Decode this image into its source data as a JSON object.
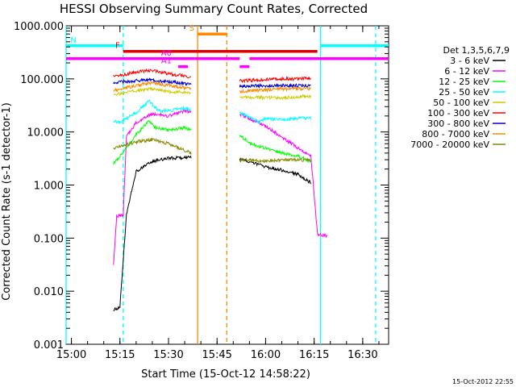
{
  "chart_data": {
    "type": "line",
    "title": "HESSI Observing Summary Count Rates, Corrected",
    "xlabel": "Start Time (15-Oct-12 14:58:22)",
    "ylabel": "Corrected Count Rate (s-1 detector-1)",
    "yscale": "log",
    "xlim": [
      "14:58:22",
      "16:38:00"
    ],
    "ylim": [
      0.001,
      1000
    ],
    "x_ticks": [
      "15:00",
      "15:15",
      "15:30",
      "15:45",
      "16:00",
      "16:15",
      "16:30"
    ],
    "y_ticks": [
      "0.001",
      "0.010",
      "0.100",
      "1.000",
      "10.000",
      "100.000",
      "1000.000"
    ],
    "legend_title": "Det 1,3,5,6,7,9",
    "legend_position": "right",
    "timestamp": "15-Oct-2012 22:55",
    "series": [
      {
        "name": "3 - 6 keV",
        "color": "#000000",
        "points": [
          [
            "15:13",
            0.0045
          ],
          [
            "15:15",
            0.005
          ],
          [
            "15:17",
            0.28
          ],
          [
            "15:20",
            1.8
          ],
          [
            "15:25",
            2.8
          ],
          [
            "15:30",
            3.2
          ],
          [
            "15:35",
            3.3
          ],
          [
            "15:37",
            3.3
          ],
          [
            "15:52",
            3.0
          ],
          [
            "15:55",
            2.8
          ],
          [
            "16:00",
            2.2
          ],
          [
            "16:05",
            1.9
          ],
          [
            "16:10",
            1.6
          ],
          [
            "16:14",
            1.1
          ]
        ]
      },
      {
        "name": "6 - 12 keV",
        "color": "#ff00ff",
        "points": [
          [
            "15:13",
            0.03
          ],
          [
            "15:14",
            0.26
          ],
          [
            "15:16",
            0.27
          ],
          [
            "15:17",
            8
          ],
          [
            "15:20",
            15
          ],
          [
            "15:25",
            22
          ],
          [
            "15:30",
            20
          ],
          [
            "15:35",
            25
          ],
          [
            "15:37",
            24
          ],
          [
            "15:52",
            22
          ],
          [
            "15:55",
            18
          ],
          [
            "16:00",
            13
          ],
          [
            "16:05",
            8
          ],
          [
            "16:10",
            5
          ],
          [
            "16:14",
            3.5
          ],
          [
            "16:16",
            0.12
          ],
          [
            "16:19",
            0.11
          ]
        ]
      },
      {
        "name": "12 - 25 keV",
        "color": "#00ff00",
        "points": [
          [
            "15:13",
            2.5
          ],
          [
            "15:15",
            3.5
          ],
          [
            "15:17",
            5
          ],
          [
            "15:20",
            9
          ],
          [
            "15:24",
            16
          ],
          [
            "15:26",
            12
          ],
          [
            "15:30",
            11
          ],
          [
            "15:35",
            12
          ],
          [
            "15:37",
            11
          ],
          [
            "15:52",
            9
          ],
          [
            "15:55",
            6
          ],
          [
            "16:00",
            5
          ],
          [
            "16:05",
            4
          ],
          [
            "16:10",
            3.5
          ],
          [
            "16:14",
            2.8
          ]
        ]
      },
      {
        "name": "25 - 50 keV",
        "color": "#00ffff",
        "points": [
          [
            "15:13",
            16
          ],
          [
            "15:15",
            15
          ],
          [
            "15:17",
            18
          ],
          [
            "15:20",
            23
          ],
          [
            "15:24",
            38
          ],
          [
            "15:27",
            25
          ],
          [
            "15:30",
            25
          ],
          [
            "15:35",
            28
          ],
          [
            "15:37",
            26
          ],
          [
            "15:52",
            23
          ],
          [
            "15:55",
            19
          ],
          [
            "15:58",
            15
          ],
          [
            "16:00",
            18
          ],
          [
            "16:05",
            17
          ],
          [
            "16:10",
            18
          ],
          [
            "16:14",
            18
          ]
        ]
      },
      {
        "name": "50 - 100 keV",
        "color": "#cccc00",
        "points": [
          [
            "15:13",
            50
          ],
          [
            "15:20",
            60
          ],
          [
            "15:25",
            65
          ],
          [
            "15:30",
            58
          ],
          [
            "15:35",
            55
          ],
          [
            "15:37",
            52
          ],
          [
            "15:52",
            45
          ],
          [
            "16:00",
            45
          ],
          [
            "16:05",
            44
          ],
          [
            "16:10",
            46
          ],
          [
            "16:14",
            47
          ]
        ]
      },
      {
        "name": "100 - 300 keV",
        "color": "#ff0000",
        "points": [
          [
            "15:13",
            110
          ],
          [
            "15:20",
            135
          ],
          [
            "15:25",
            145
          ],
          [
            "15:30",
            125
          ],
          [
            "15:35",
            115
          ],
          [
            "15:37",
            105
          ],
          [
            "15:52",
            92
          ],
          [
            "16:00",
            97
          ],
          [
            "16:05",
            100
          ],
          [
            "16:10",
            100
          ],
          [
            "16:14",
            102
          ]
        ]
      },
      {
        "name": "300 - 800 keV",
        "color": "#0000cc",
        "points": [
          [
            "15:13",
            85
          ],
          [
            "15:20",
            92
          ],
          [
            "15:25",
            95
          ],
          [
            "15:30",
            88
          ],
          [
            "15:35",
            82
          ],
          [
            "15:37",
            80
          ],
          [
            "15:52",
            73
          ],
          [
            "16:00",
            75
          ],
          [
            "16:05",
            75
          ],
          [
            "16:10",
            75
          ],
          [
            "16:14",
            75
          ]
        ]
      },
      {
        "name": "800 - 7000 keV",
        "color": "#ff8800",
        "points": [
          [
            "15:13",
            60
          ],
          [
            "15:20",
            75
          ],
          [
            "15:25",
            85
          ],
          [
            "15:30",
            75
          ],
          [
            "15:35",
            68
          ],
          [
            "15:37",
            65
          ],
          [
            "15:52",
            58
          ],
          [
            "16:00",
            62
          ],
          [
            "16:05",
            65
          ],
          [
            "16:10",
            65
          ],
          [
            "16:14",
            65
          ]
        ]
      },
      {
        "name": "7000 - 20000 keV",
        "color": "#888800",
        "points": [
          [
            "15:13",
            5
          ],
          [
            "15:20",
            6.5
          ],
          [
            "15:25",
            7.2
          ],
          [
            "15:30",
            6
          ],
          [
            "15:35",
            4.5
          ],
          [
            "15:37",
            4
          ],
          [
            "15:52",
            3
          ],
          [
            "16:00",
            2.8
          ],
          [
            "16:05",
            3
          ],
          [
            "16:10",
            3
          ],
          [
            "16:14",
            2.9
          ]
        ]
      }
    ],
    "flag_bars": [
      {
        "label": "N",
        "color": "#00ffff",
        "level": 420,
        "segments": [
          [
            "14:58:22",
            "15:16"
          ],
          [
            "16:17",
            "16:38"
          ]
        ]
      },
      {
        "label": "S",
        "color": "#ff8800",
        "level": 700,
        "segments": [
          [
            "15:39",
            "15:48"
          ]
        ]
      },
      {
        "label": "F",
        "color": "#dd0000",
        "level": 330,
        "segments": [
          [
            "15:16",
            "16:16"
          ]
        ]
      },
      {
        "label": "A0",
        "color": "#ff00ff",
        "level": 240,
        "segments": [
          [
            "14:58:22",
            "15:38"
          ],
          [
            "15:38",
            "15:52"
          ],
          [
            "15:55",
            "16:38"
          ]
        ]
      },
      {
        "label": "A1",
        "color": "#ff00ff",
        "level": 170,
        "segments": [
          [
            "15:33",
            "15:36"
          ],
          [
            "15:52",
            "15:55"
          ]
        ]
      }
    ],
    "event_lines": [
      {
        "color": "#00ffff",
        "style": "dashed",
        "x": "15:16"
      },
      {
        "color": "#00ffff",
        "style": "solid",
        "x": "14:58:22"
      },
      {
        "color": "#ff8800",
        "style": "solid",
        "x": "15:39"
      },
      {
        "color": "#ff8800",
        "style": "dashed",
        "x": "15:48"
      },
      {
        "color": "#00ffff",
        "style": "solid",
        "x": "16:17"
      },
      {
        "color": "#00ffff",
        "style": "dashed",
        "x": "16:34"
      }
    ]
  }
}
